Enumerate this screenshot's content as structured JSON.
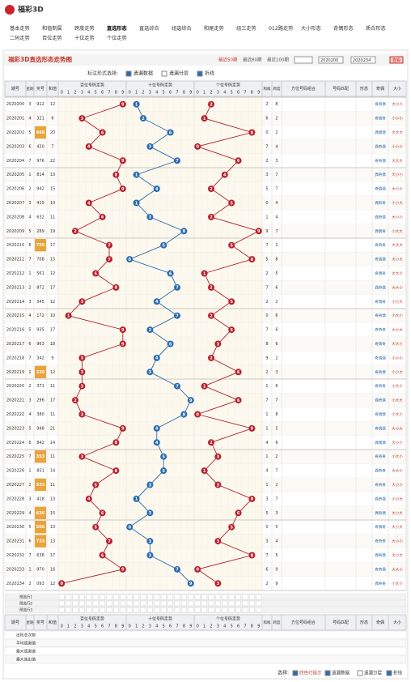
{
  "header": {
    "logo": "福彩3D",
    "nav": [
      "基本走势",
      "和值制属",
      "跨度走势",
      "直选形态",
      "直选综合",
      "组选综合",
      "和尾走势",
      "组三走势",
      "012路走势",
      "大小形态",
      "奇偶形态",
      "质合形态",
      "二码走势",
      "百位走势",
      "十位走势",
      "个位走势"
    ]
  },
  "chart": {
    "title": "福彩3D直选形态走势图",
    "mark_label": "标注形式选择:",
    "options": [
      "遗漏数据",
      "遗漏分层",
      "折线"
    ],
    "periods": [
      "最近50期",
      "最近80期",
      "最近100期"
    ],
    "from": "2020200",
    "to": "2020234",
    "view": "查看"
  },
  "table": {
    "headers": [
      "期号",
      "星期",
      "奖号",
      "和值",
      "百位号码走势",
      "十位号码走势",
      "个位号码走势",
      "和尾",
      "跨度",
      "方位号码组合",
      "号码匹配",
      "形态",
      "奇偶",
      "大小"
    ],
    "digits": [
      "0",
      "1",
      "2",
      "3",
      "4",
      "5",
      "6",
      "7",
      "8",
      "9"
    ],
    "rows": [
      {
        "issue": "2020200",
        "weekday": 3,
        "number": "912",
        "digits": [
          9,
          1,
          2
        ],
        "sum": 12,
        "tail": 2,
        "span": 8,
        "parity": "奇奇偶",
        "size": "大小小"
      },
      {
        "issue": "2020201",
        "weekday": 4,
        "number": "321",
        "digits": [
          3,
          2,
          1
        ],
        "sum": 6,
        "tail": 6,
        "span": 2,
        "parity": "奇偶奇",
        "size": "小小小"
      },
      {
        "issue": "2020202",
        "weekday": 5,
        "number": "668",
        "digits": [
          6,
          6,
          8
        ],
        "sum": 20,
        "tail": 0,
        "span": 2,
        "parity": "偶偶偶",
        "size": "大大大"
      },
      {
        "issue": "2020203",
        "weekday": 6,
        "number": "430",
        "digits": [
          4,
          3,
          0
        ],
        "sum": 7,
        "tail": 7,
        "span": 4,
        "parity": "偶奇偶",
        "size": "小小小"
      },
      {
        "issue": "2020204",
        "weekday": 7,
        "number": "976",
        "digits": [
          9,
          7,
          6
        ],
        "sum": 22,
        "tail": 2,
        "span": 3,
        "parity": "奇奇偶",
        "size": "大大大"
      },
      {
        "issue": "2020205",
        "weekday": 1,
        "number": "814",
        "digits": [
          8,
          1,
          4
        ],
        "sum": 13,
        "tail": 3,
        "span": 7,
        "parity": "偶奇偶",
        "size": "大小小"
      },
      {
        "issue": "2020206",
        "weekday": 2,
        "number": "942",
        "digits": [
          9,
          4,
          2
        ],
        "sum": 15,
        "tail": 5,
        "span": 7,
        "parity": "奇偶偶",
        "size": "大小小"
      },
      {
        "issue": "2020207",
        "weekday": 3,
        "number": "415",
        "digits": [
          4,
          1,
          5
        ],
        "sum": 10,
        "tail": 0,
        "span": 4,
        "parity": "偶奇奇",
        "size": "小小大"
      },
      {
        "issue": "2020208",
        "weekday": 4,
        "number": "632",
        "digits": [
          6,
          3,
          2
        ],
        "sum": 11,
        "tail": 1,
        "span": 4,
        "parity": "偶奇偶",
        "size": "大小小"
      },
      {
        "issue": "2020209",
        "weekday": 5,
        "number": "289",
        "digits": [
          2,
          8,
          9
        ],
        "sum": 19,
        "tail": 9,
        "span": 7,
        "parity": "偶偶奇",
        "size": "小大大"
      },
      {
        "issue": "2020210",
        "weekday": 6,
        "number": "755",
        "digits": [
          7,
          5,
          5
        ],
        "sum": 17,
        "tail": 7,
        "span": 2,
        "parity": "奇奇奇",
        "size": "大大大"
      },
      {
        "issue": "2020211",
        "weekday": 7,
        "number": "708",
        "digits": [
          7,
          0,
          8
        ],
        "sum": 15,
        "tail": 5,
        "span": 8,
        "parity": "奇偶偶",
        "size": "大小大"
      },
      {
        "issue": "2020212",
        "weekday": 1,
        "number": "561",
        "digits": [
          5,
          6,
          1
        ],
        "sum": 12,
        "tail": 2,
        "span": 5,
        "parity": "奇偶奇",
        "size": "大大小"
      },
      {
        "issue": "2020213",
        "weekday": 2,
        "number": "872",
        "digits": [
          8,
          7,
          2
        ],
        "sum": 17,
        "tail": 7,
        "span": 6,
        "parity": "偶奇偶",
        "size": "大大小"
      },
      {
        "issue": "2020214",
        "weekday": 3,
        "number": "345",
        "digits": [
          3,
          4,
          5
        ],
        "sum": 12,
        "tail": 2,
        "span": 2,
        "parity": "奇偶奇",
        "size": "小小大"
      },
      {
        "issue": "2020215",
        "weekday": 4,
        "number": "172",
        "digits": [
          1,
          7,
          2
        ],
        "sum": 10,
        "tail": 0,
        "span": 6,
        "parity": "奇奇偶",
        "size": "小大小"
      },
      {
        "issue": "2020216",
        "weekday": 5,
        "number": "935",
        "digits": [
          9,
          3,
          5
        ],
        "sum": 17,
        "tail": 7,
        "span": 6,
        "parity": "奇奇奇",
        "size": "大小大"
      },
      {
        "issue": "2020217",
        "weekday": 6,
        "number": "963",
        "digits": [
          9,
          6,
          3
        ],
        "sum": 18,
        "tail": 8,
        "span": 6,
        "parity": "奇偶奇",
        "size": "大大小"
      },
      {
        "issue": "2020218",
        "weekday": 7,
        "number": "342",
        "digits": [
          3,
          4,
          2
        ],
        "sum": 9,
        "tail": 9,
        "span": 2,
        "parity": "奇偶偶",
        "size": "小小小"
      },
      {
        "issue": "2020219",
        "weekday": 1,
        "number": "336",
        "digits": [
          3,
          3,
          6
        ],
        "sum": 12,
        "tail": 2,
        "span": 3,
        "parity": "奇奇偶",
        "size": "小小大"
      },
      {
        "issue": "2020220",
        "weekday": 2,
        "number": "371",
        "digits": [
          3,
          7,
          1
        ],
        "sum": 11,
        "tail": 1,
        "span": 6,
        "parity": "奇奇奇",
        "size": "小大小"
      },
      {
        "issue": "2020221",
        "weekday": 3,
        "number": "296",
        "digits": [
          2,
          9,
          6
        ],
        "sum": 17,
        "tail": 7,
        "span": 7,
        "parity": "偶奇偶",
        "size": "小大大"
      },
      {
        "issue": "2020222",
        "weekday": 4,
        "number": "380",
        "digits": [
          3,
          8,
          0
        ],
        "sum": 11,
        "tail": 1,
        "span": 8,
        "parity": "奇偶偶",
        "size": "小大小"
      },
      {
        "issue": "2020223",
        "weekday": 5,
        "number": "948",
        "digits": [
          9,
          4,
          8
        ],
        "sum": 21,
        "tail": 1,
        "span": 5,
        "parity": "奇偶偶",
        "size": "大小大"
      },
      {
        "issue": "2020224",
        "weekday": 6,
        "number": "842",
        "digits": [
          8,
          4,
          2
        ],
        "sum": 14,
        "tail": 4,
        "span": 6,
        "parity": "偶偶偶",
        "size": "大小小"
      },
      {
        "issue": "2020225",
        "weekday": 7,
        "number": "353",
        "digits": [
          3,
          5,
          3
        ],
        "sum": 11,
        "tail": 1,
        "span": 2,
        "parity": "奇奇奇",
        "size": "小大小"
      },
      {
        "issue": "2020226",
        "weekday": 1,
        "number": "851",
        "digits": [
          8,
          5,
          1
        ],
        "sum": 14,
        "tail": 4,
        "span": 7,
        "parity": "偶奇奇",
        "size": "大大小"
      },
      {
        "issue": "2020227",
        "weekday": 2,
        "number": "533",
        "digits": [
          5,
          3,
          3
        ],
        "sum": 11,
        "tail": 1,
        "span": 2,
        "parity": "奇奇奇",
        "size": "大小小"
      },
      {
        "issue": "2020228",
        "weekday": 3,
        "number": "418",
        "digits": [
          4,
          1,
          8
        ],
        "sum": 13,
        "tail": 3,
        "span": 7,
        "parity": "偶奇偶",
        "size": "小小大"
      },
      {
        "issue": "2020229",
        "weekday": 4,
        "number": "636",
        "digits": [
          6,
          3,
          6
        ],
        "sum": 15,
        "tail": 5,
        "span": 3,
        "parity": "偶奇偶",
        "size": "大小大"
      },
      {
        "issue": "2020230",
        "weekday": 5,
        "number": "505",
        "digits": [
          5,
          0,
          5
        ],
        "sum": 10,
        "tail": 0,
        "span": 5,
        "parity": "奇偶奇",
        "size": "大小大"
      },
      {
        "issue": "2020231",
        "weekday": 6,
        "number": "733",
        "digits": [
          7,
          3,
          3
        ],
        "sum": 13,
        "tail": 3,
        "span": 4,
        "parity": "奇奇奇",
        "size": "大小小"
      },
      {
        "issue": "2020232",
        "weekday": 7,
        "number": "638",
        "digits": [
          6,
          3,
          8
        ],
        "sum": 17,
        "tail": 7,
        "span": 5,
        "parity": "偶奇偶",
        "size": "大小大"
      },
      {
        "issue": "2020233",
        "weekday": 1,
        "number": "970",
        "digits": [
          9,
          7,
          0
        ],
        "sum": 16,
        "tail": 6,
        "span": 9,
        "parity": "奇奇偶",
        "size": "大大小"
      },
      {
        "issue": "2020234",
        "weekday": 2,
        "number": "093",
        "digits": [
          0,
          9,
          3
        ],
        "sum": 12,
        "tail": 2,
        "span": 9,
        "parity": "偶奇奇",
        "size": "小大小"
      }
    ],
    "preselect": [
      "预选行1",
      "预选行2",
      "预选行3"
    ],
    "stats": [
      "出现总次数",
      "平均遗漏值",
      "最大遗漏值",
      "最大连出值"
    ]
  },
  "footer": {
    "label": "选择:",
    "options": [
      "四色行提示",
      "遗漏数据",
      "遗漏分层",
      "折线"
    ]
  }
}
